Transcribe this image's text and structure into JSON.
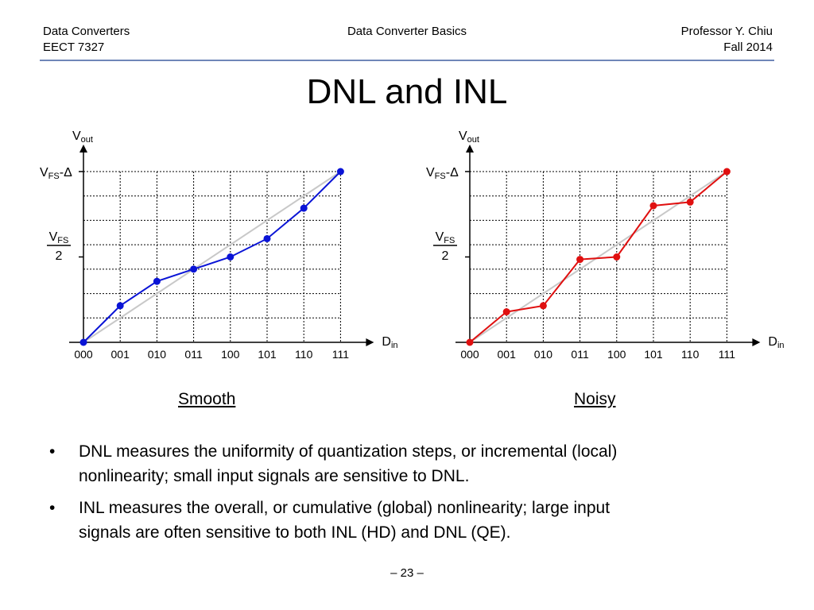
{
  "header": {
    "course": "Data Converters",
    "code": "EECT 7327",
    "topic": "Data Converter Basics",
    "author": "Professor Y. Chiu",
    "term": "Fall 2014"
  },
  "title": "DNL and INL",
  "chart_data": [
    {
      "type": "line",
      "caption": "Smooth",
      "categories": [
        "000",
        "001",
        "010",
        "011",
        "100",
        "101",
        "110",
        "111"
      ],
      "series": [
        {
          "color": "#0a14d6",
          "values": [
            0,
            1.5,
            2.5,
            3.0,
            3.5,
            4.25,
            5.5,
            7.0
          ]
        }
      ],
      "ideal": [
        0,
        7
      ],
      "ylim": [
        0,
        7
      ],
      "ylabel_main": "V",
      "ylabel_sub": "out",
      "xlabel_main": "D",
      "xlabel_sub": "in",
      "ytick_top": {
        "main": "V",
        "sub": "FS",
        "suffix": "-Δ"
      },
      "ytick_mid": {
        "main": "V",
        "sub": "FS",
        "denominator": "2"
      },
      "grid": true
    },
    {
      "type": "line",
      "caption": "Noisy",
      "categories": [
        "000",
        "001",
        "010",
        "011",
        "100",
        "101",
        "110",
        "111"
      ],
      "series": [
        {
          "color": "#e01010",
          "values": [
            0,
            1.25,
            1.5,
            3.4,
            3.5,
            5.6,
            5.75,
            7.0
          ]
        }
      ],
      "ideal": [
        0,
        7
      ],
      "ylim": [
        0,
        7
      ],
      "ylabel_main": "V",
      "ylabel_sub": "out",
      "xlabel_main": "D",
      "xlabel_sub": "in",
      "ytick_top": {
        "main": "V",
        "sub": "FS",
        "suffix": "-Δ"
      },
      "ytick_mid": {
        "main": "V",
        "sub": "FS",
        "denominator": "2"
      },
      "grid": true
    }
  ],
  "bullets": [
    {
      "marker": "•",
      "line1": "DNL measures the uniformity of quantization steps, or incremental (local)",
      "line2": "nonlinearity; small input signals are sensitive to DNL."
    },
    {
      "marker": "•",
      "line1": "INL measures the overall, or cumulative (global) nonlinearity; large input",
      "line2": "signals are often sensitive to both INL (HD) and DNL (QE)."
    }
  ],
  "page_number": "– 23 –"
}
